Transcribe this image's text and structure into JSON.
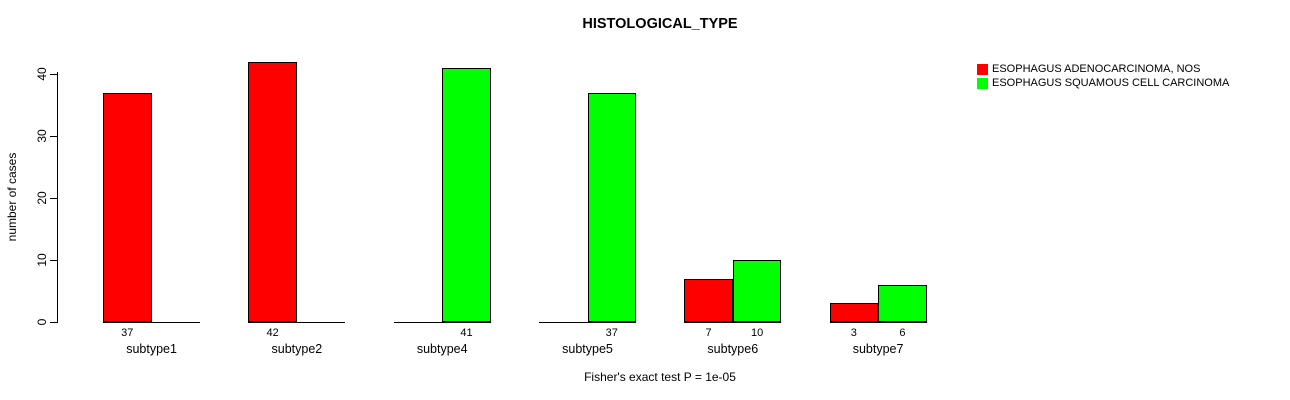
{
  "title": "HISTOLOGICAL_TYPE",
  "footer": "Fisher's exact test P = 1e-05",
  "y_axis_label": "number of cases",
  "legend": {
    "items": [
      {
        "label": "ESOPHAGUS ADENOCARCINOMA, NOS",
        "color": "#ff0000"
      },
      {
        "label": "ESOPHAGUS SQUAMOUS CELL CARCINOMA",
        "color": "#00ff00"
      }
    ]
  },
  "chart_data": {
    "type": "bar",
    "title": "HISTOLOGICAL_TYPE",
    "xlabel": "",
    "ylabel": "number of cases",
    "categories": [
      "subtype1",
      "subtype2",
      "subtype4",
      "subtype5",
      "subtype6",
      "subtype7"
    ],
    "series": [
      {
        "name": "ESOPHAGUS ADENOCARCINOMA, NOS",
        "key": "adenocarcinoma",
        "color": "#ff0000",
        "values": [
          37,
          42,
          null,
          null,
          7,
          3
        ]
      },
      {
        "name": "ESOPHAGUS SQUAMOUS CELL CARCINOMA",
        "key": "squamous",
        "color": "#00ff00",
        "values": [
          null,
          null,
          41,
          37,
          10,
          6
        ]
      }
    ],
    "yticks": [
      0,
      10,
      20,
      30,
      40
    ],
    "ylim": [
      0,
      42
    ],
    "grid": false,
    "legend_position": "top-right",
    "bar_value_labels": true,
    "annotation": "Fisher's exact test P = 1e-05"
  }
}
